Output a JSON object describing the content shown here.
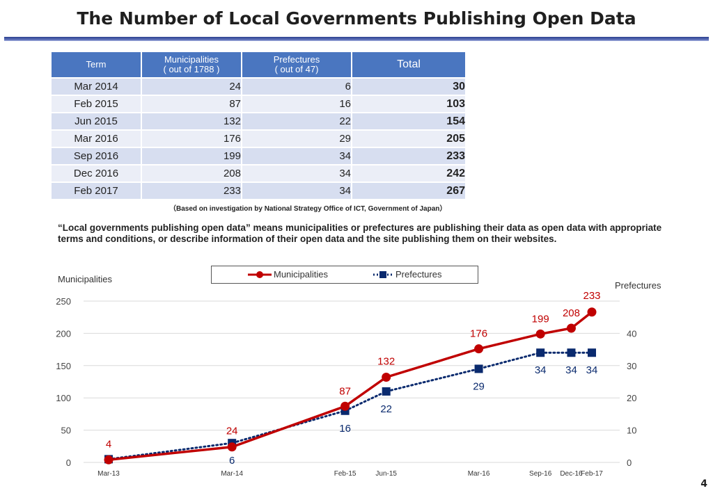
{
  "title": "The Number of Local Governments Publishing Open Data",
  "table": {
    "headers": {
      "term": "Term",
      "municipalities_line1": "Municipalities",
      "municipalities_line2": "( out of 1788 )",
      "prefectures_line1": "Prefectures",
      "prefectures_line2": "( out of 47)",
      "total": "Total"
    },
    "rows": [
      {
        "term": "Mar 2014",
        "municipalities": "24",
        "prefectures": "6",
        "total": "30"
      },
      {
        "term": "Feb 2015",
        "municipalities": "87",
        "prefectures": "16",
        "total": "103"
      },
      {
        "term": "Jun 2015",
        "municipalities": "132",
        "prefectures": "22",
        "total": "154"
      },
      {
        "term": "Mar 2016",
        "municipalities": "176",
        "prefectures": "29",
        "total": "205"
      },
      {
        "term": "Sep 2016",
        "municipalities": "199",
        "prefectures": "34",
        "total": "233"
      },
      {
        "term": "Dec 2016",
        "municipalities": "208",
        "prefectures": "34",
        "total": "242"
      },
      {
        "term": "Feb 2017",
        "municipalities": "233",
        "prefectures": "34",
        "total": "267"
      }
    ],
    "source_note": "（Based on investigation by National Strategy Office of ICT, Government of Japan）"
  },
  "definition": "“Local governments publishing open data” means municipalities or prefectures are publishing their data as open data with appropriate terms and conditions, or describe information of their open data and the site publishing them on their websites.",
  "page_number": "4",
  "chart_data": {
    "type": "line",
    "categories": [
      "Mar-13",
      "Mar-14",
      "Feb-15",
      "Jun-15",
      "Mar-16",
      "Sep-16",
      "Dec-16",
      "Feb-17"
    ],
    "x_months": [
      0,
      12,
      23,
      27,
      36,
      42,
      45,
      47
    ],
    "series": [
      {
        "name": "Municipalities",
        "axis": "left",
        "color": "#c00000",
        "values": [
          4,
          24,
          87,
          132,
          176,
          199,
          208,
          233
        ]
      },
      {
        "name": "Prefectures",
        "axis": "right",
        "color": "#0a2a6e",
        "values": [
          1,
          6,
          16,
          22,
          29,
          34,
          34,
          34
        ]
      }
    ],
    "data_labels": {
      "Municipalities": [
        "4",
        "24",
        "87",
        "132",
        "176",
        "199",
        "208",
        "233"
      ],
      "Prefectures": [
        "",
        "6",
        "16",
        "22",
        "29",
        "34",
        "34",
        "34"
      ]
    },
    "left_axis": {
      "label": "Municipalities",
      "ylim": [
        0,
        250
      ],
      "ticks": [
        "0",
        "50",
        "100",
        "150",
        "200",
        "250"
      ]
    },
    "right_axis": {
      "label": "Prefectures",
      "ylim": [
        0,
        50
      ],
      "ticks": [
        "0",
        "10",
        "20",
        "30",
        "40"
      ]
    },
    "legend": {
      "position": "top-center",
      "entries": [
        "Municipalities",
        "Prefectures"
      ]
    },
    "grid": true
  }
}
